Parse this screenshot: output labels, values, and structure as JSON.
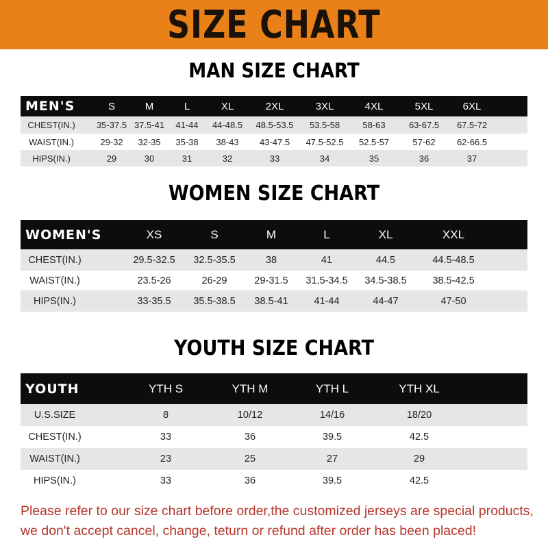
{
  "title": "SIZE CHART",
  "colors": {
    "banner": "#ea8118",
    "header_row": "#0d0d0d",
    "note": "#b5362b"
  },
  "men": {
    "title": "MAN SIZE CHART",
    "headers": [
      "MEN'S",
      "S",
      "M",
      "L",
      "XL",
      "2XL",
      "3XL",
      "4XL",
      "5XL",
      "6XL"
    ],
    "rows": [
      [
        "CHEST(IN.)",
        "35-37.5",
        "37.5-41",
        "41-44",
        "44-48.5",
        "48.5-53.5",
        "53.5-58",
        "58-63",
        "63-67.5",
        "67.5-72"
      ],
      [
        "WAIST(IN.)",
        "29-32",
        "32-35",
        "35-38",
        "38-43",
        "43-47.5",
        "47.5-52.5",
        "52.5-57",
        "57-62",
        "62-66.5"
      ],
      [
        "HIPS(IN.)",
        "29",
        "30",
        "31",
        "32",
        "33",
        "34",
        "35",
        "36",
        "37"
      ]
    ]
  },
  "women": {
    "title": "WOMEN SIZE CHART",
    "headers": [
      "WOMEN'S",
      "XS",
      "S",
      "M",
      "L",
      "XL",
      "XXL"
    ],
    "rows": [
      [
        "CHEST(IN.)",
        "29.5-32.5",
        "32.5-35.5",
        "38",
        "41",
        "44.5",
        "44.5-48.5"
      ],
      [
        "WAIST(IN.)",
        "23.5-26",
        "26-29",
        "29-31.5",
        "31.5-34.5",
        "34.5-38.5",
        "38.5-42.5"
      ],
      [
        "HIPS(IN.)",
        "33-35.5",
        "35.5-38.5",
        "38.5-41",
        "41-44",
        "44-47",
        "47-50"
      ]
    ]
  },
  "youth": {
    "title": "YOUTH SIZE CHART",
    "headers": [
      "YOUTH",
      "YTH S",
      "YTH M",
      "YTH L",
      "YTH XL"
    ],
    "rows": [
      [
        "U.S.SIZE",
        "8",
        "10/12",
        "14/16",
        "18/20"
      ],
      [
        "CHEST(IN.)",
        "33",
        "36",
        "39.5",
        "42.5"
      ],
      [
        "WAIST(IN.)",
        "23",
        "25",
        "27",
        "29"
      ],
      [
        "HIPS(IN.)",
        "33",
        "36",
        "39.5",
        "42.5"
      ]
    ]
  },
  "note": {
    "line1": "Please refer to our size chart before order,the customized jerseys are special products,",
    "line2": "we don't accept cancel, change, teturn or refund after order has been placed!"
  }
}
